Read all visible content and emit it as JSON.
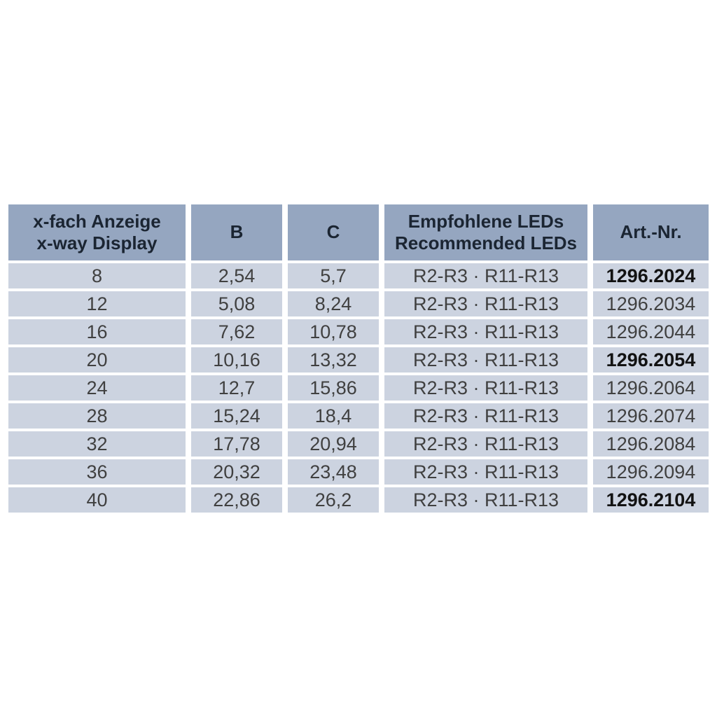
{
  "header": {
    "display": {
      "line1": "x-fach Anzeige",
      "line2": "x-way Display"
    },
    "b": "B",
    "c": "C",
    "leds": {
      "line1": "Empfohlene LEDs",
      "line2": "Recommended LEDs"
    },
    "art": "Art.-Nr."
  },
  "rows": [
    {
      "display": "8",
      "b": "2,54",
      "c": "5,7",
      "leds": "R2-R3 · R11-R13",
      "art": "1296.2024",
      "art_bold": true
    },
    {
      "display": "12",
      "b": "5,08",
      "c": "8,24",
      "leds": "R2-R3 · R11-R13",
      "art": "1296.2034",
      "art_bold": false
    },
    {
      "display": "16",
      "b": "7,62",
      "c": "10,78",
      "leds": "R2-R3 · R11-R13",
      "art": "1296.2044",
      "art_bold": false
    },
    {
      "display": "20",
      "b": "10,16",
      "c": "13,32",
      "leds": "R2-R3 · R11-R13",
      "art": "1296.2054",
      "art_bold": true
    },
    {
      "display": "24",
      "b": "12,7",
      "c": "15,86",
      "leds": "R2-R3 · R11-R13",
      "art": "1296.2064",
      "art_bold": false
    },
    {
      "display": "28",
      "b": "15,24",
      "c": "18,4",
      "leds": "R2-R3 · R11-R13",
      "art": "1296.2074",
      "art_bold": false
    },
    {
      "display": "32",
      "b": "17,78",
      "c": "20,94",
      "leds": "R2-R3 · R11-R13",
      "art": "1296.2084",
      "art_bold": false
    },
    {
      "display": "36",
      "b": "20,32",
      "c": "23,48",
      "leds": "R2-R3 · R11-R13",
      "art": "1296.2094",
      "art_bold": false
    },
    {
      "display": "40",
      "b": "22,86",
      "c": "26,2",
      "leds": "R2-R3 · R11-R13",
      "art": "1296.2104",
      "art_bold": true
    }
  ],
  "colors": {
    "header_bg": "#95a6c0",
    "row_bg": "#ccd3e0",
    "header_text": "#1b2532",
    "body_text": "#404040",
    "bold_text": "#121212",
    "gap": "#ffffff"
  }
}
